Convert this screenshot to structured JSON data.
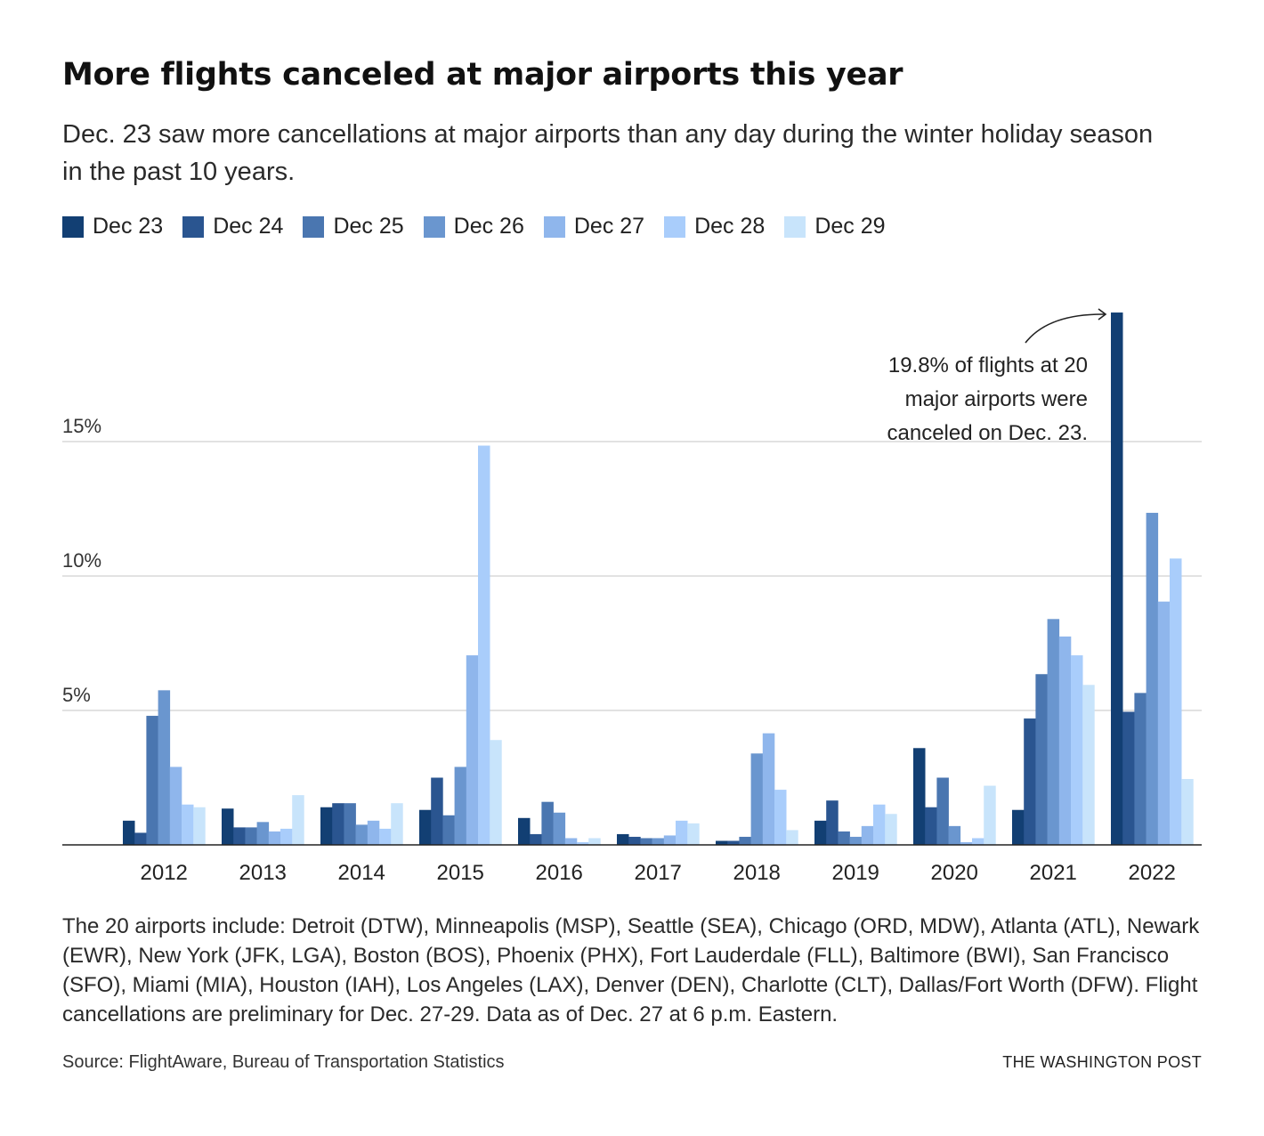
{
  "header": {
    "title": "More flights canceled at major airports this year",
    "subtitle": "Dec. 23 saw more cancellations at major airports than any day during the winter holiday season in the past 10 years."
  },
  "colors": {
    "series": [
      "#123f73",
      "#2a5590",
      "#4a76b0",
      "#6a96cf",
      "#8fb6ec",
      "#a9cdfb",
      "#c8e4fb"
    ],
    "gridline": "#d0d0d0",
    "axis": "#222222"
  },
  "chart_data": {
    "type": "bar",
    "title": "More flights canceled at major airports this year",
    "xlabel": "",
    "ylabel": "",
    "ylim": [
      0,
      20
    ],
    "yticks": [
      {
        "value": 5,
        "label": "5%"
      },
      {
        "value": 10,
        "label": "10%"
      },
      {
        "value": 15,
        "label": "15%"
      }
    ],
    "grid": true,
    "legend_position": "top-left",
    "categories": [
      "2012",
      "2013",
      "2014",
      "2015",
      "2016",
      "2017",
      "2018",
      "2019",
      "2020",
      "2021",
      "2022"
    ],
    "series": [
      {
        "name": "Dec 23",
        "values": [
          0.9,
          1.35,
          1.4,
          1.3,
          1.0,
          0.4,
          0.15,
          0.9,
          3.6,
          1.3,
          19.8
        ]
      },
      {
        "name": "Dec 24",
        "values": [
          0.45,
          0.65,
          1.55,
          2.5,
          0.4,
          0.3,
          0.15,
          1.65,
          1.4,
          4.7,
          4.95
        ]
      },
      {
        "name": "Dec 25",
        "values": [
          4.8,
          0.65,
          1.55,
          1.1,
          1.6,
          0.25,
          0.3,
          0.5,
          2.5,
          6.35,
          5.65
        ]
      },
      {
        "name": "Dec 26",
        "values": [
          5.75,
          0.85,
          0.75,
          2.9,
          1.2,
          0.25,
          3.4,
          0.3,
          0.7,
          8.4,
          12.35
        ]
      },
      {
        "name": "Dec 27",
        "values": [
          2.9,
          0.5,
          0.9,
          7.05,
          0.25,
          0.35,
          4.15,
          0.7,
          0.1,
          7.75,
          9.05
        ]
      },
      {
        "name": "Dec 28",
        "values": [
          1.5,
          0.6,
          0.6,
          14.85,
          0.1,
          0.9,
          2.05,
          1.5,
          0.25,
          7.05,
          10.65
        ]
      },
      {
        "name": "Dec 29",
        "values": [
          1.4,
          1.85,
          1.55,
          3.9,
          0.25,
          0.8,
          0.55,
          1.15,
          2.2,
          5.95,
          2.45
        ]
      }
    ],
    "annotation": {
      "text_lines": [
        "19.8% of flights at 20",
        "major airports were",
        "canceled on Dec. 23."
      ],
      "target_series": "Dec 23",
      "target_category": "2022"
    }
  },
  "footer": {
    "notes": "The 20 airports include: Detroit (DTW), Minneapolis (MSP), Seattle (SEA), Chicago (ORD, MDW), Atlanta (ATL), Newark (EWR), New York (JFK, LGA), Boston (BOS), Phoenix (PHX), Fort Lauderdale (FLL), Baltimore (BWI), San Francisco (SFO), Miami (MIA), Houston (IAH), Los Angeles (LAX), Denver (DEN), Charlotte (CLT), Dallas/Fort Worth (DFW). Flight cancellations are preliminary for Dec. 27-29. Data as of Dec. 27 at 6 p.m. Eastern.",
    "source": "Source: FlightAware, Bureau of Transportation Statistics",
    "brand": "THE WASHINGTON POST"
  }
}
